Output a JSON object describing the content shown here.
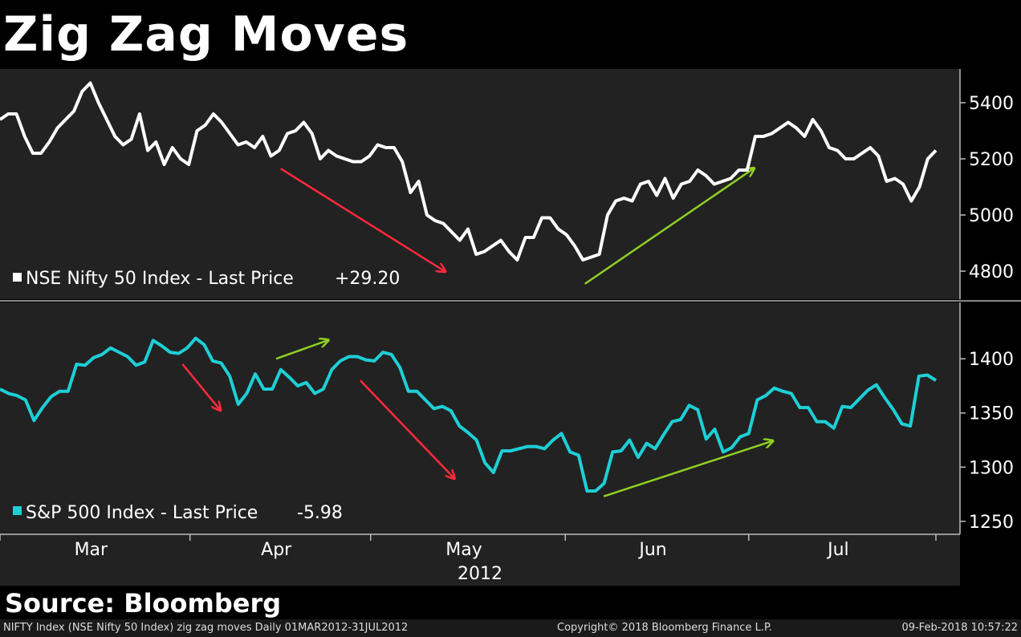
{
  "title": "Zig Zag Moves",
  "source": "Source: Bloomberg",
  "footer": {
    "left": "NIFTY Index (NSE Nifty 50 Index) zig zag moves  Daily 01MAR2012-31JUL2012",
    "center": "Copyright© 2018 Bloomberg Finance L.P.",
    "right": "09-Feb-2018 10:57:22"
  },
  "colors": {
    "nifty": "#ffffff",
    "sp": "#1ecfd6",
    "up_arrow": "#8ed122",
    "down_arrow": "#ff2a3c",
    "panel": "#222222"
  },
  "chart_data": {
    "type": "line",
    "x_axis": {
      "month_labels": [
        "Mar",
        "Apr",
        "May",
        "Jun",
        "Jul"
      ],
      "year_label": "2012"
    },
    "panels": [
      {
        "series_name": "NSE Nifty 50 Index - Last Price",
        "change": "+29.20",
        "ylim": [
          4700,
          5520
        ],
        "yticks": [
          "5400",
          "5200",
          "5000",
          "4800"
        ],
        "ytick_values": [
          5400,
          5200,
          5000,
          4800
        ],
        "values": [
          5340,
          5360,
          5360,
          5280,
          5220,
          5220,
          5260,
          5310,
          5340,
          5370,
          5440,
          5470,
          5400,
          5340,
          5280,
          5250,
          5270,
          5360,
          5230,
          5260,
          5180,
          5240,
          5200,
          5180,
          5300,
          5320,
          5360,
          5330,
          5290,
          5250,
          5260,
          5240,
          5280,
          5210,
          5230,
          5290,
          5300,
          5330,
          5290,
          5200,
          5230,
          5210,
          5200,
          5190,
          5190,
          5210,
          5250,
          5240,
          5240,
          5190,
          5080,
          5120,
          5000,
          4980,
          4970,
          4940,
          4910,
          4950,
          4860,
          4870,
          4890,
          4910,
          4870,
          4840,
          4920,
          4920,
          4990,
          4990,
          4950,
          4930,
          4890,
          4840,
          4850,
          4860,
          5000,
          5050,
          5060,
          5050,
          5110,
          5120,
          5070,
          5130,
          5060,
          5110,
          5120,
          5160,
          5140,
          5110,
          5120,
          5130,
          5160,
          5160,
          5280,
          5280,
          5290,
          5310,
          5330,
          5310,
          5280,
          5340,
          5300,
          5240,
          5230,
          5200,
          5200,
          5220,
          5240,
          5210,
          5120,
          5130,
          5110,
          5050,
          5100,
          5200,
          5230
        ],
        "arrows": [
          {
            "dir": "down",
            "x0": 0.3,
            "y0": 5165,
            "x1": 0.475,
            "y1": 4800
          },
          {
            "dir": "up",
            "x0": 0.625,
            "y0": 4755,
            "x1": 0.805,
            "y1": 5165
          }
        ]
      },
      {
        "series_name": "S&P 500 Index - Last Price",
        "change": "-5.98",
        "ylim": [
          1238,
          1452
        ],
        "yticks": [
          "1400",
          "1350",
          "1300",
          "1250"
        ],
        "ytick_values": [
          1400,
          1350,
          1300,
          1250
        ],
        "values": [
          1372,
          1368,
          1366,
          1362,
          1343,
          1355,
          1365,
          1370,
          1370,
          1395,
          1394,
          1401,
          1404,
          1410,
          1406,
          1402,
          1394,
          1397,
          1417,
          1412,
          1406,
          1405,
          1410,
          1419,
          1413,
          1398,
          1396,
          1384,
          1358,
          1368,
          1386,
          1372,
          1372,
          1390,
          1383,
          1375,
          1378,
          1368,
          1372,
          1390,
          1398,
          1402,
          1402,
          1399,
          1398,
          1406,
          1404,
          1392,
          1370,
          1370,
          1362,
          1354,
          1356,
          1352,
          1338,
          1332,
          1325,
          1304,
          1295,
          1315,
          1315,
          1317,
          1319,
          1319,
          1317,
          1325,
          1331,
          1314,
          1311,
          1278,
          1278,
          1285,
          1314,
          1315,
          1325,
          1309,
          1322,
          1317,
          1330,
          1342,
          1344,
          1357,
          1353,
          1326,
          1335,
          1314,
          1318,
          1328,
          1331,
          1362,
          1366,
          1373,
          1370,
          1368,
          1355,
          1355,
          1342,
          1342,
          1336,
          1356,
          1355,
          1363,
          1371,
          1376,
          1364,
          1353,
          1340,
          1338,
          1384,
          1385,
          1380
        ],
        "arrows": [
          {
            "dir": "down",
            "x0": 0.195,
            "y0": 1395,
            "x1": 0.235,
            "y1": 1353
          },
          {
            "dir": "up",
            "x0": 0.295,
            "y0": 1400,
            "x1": 0.35,
            "y1": 1417
          },
          {
            "dir": "down",
            "x0": 0.385,
            "y0": 1380,
            "x1": 0.485,
            "y1": 1290
          },
          {
            "dir": "up",
            "x0": 0.645,
            "y0": 1273,
            "x1": 0.825,
            "y1": 1324
          }
        ]
      }
    ]
  }
}
